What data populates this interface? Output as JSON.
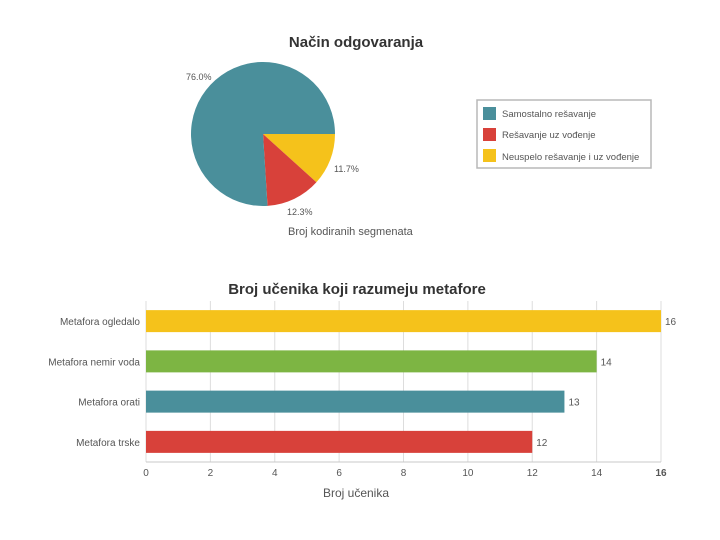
{
  "chart_data": [
    {
      "type": "pie",
      "title": "Način odgovaranja",
      "xlabel": "Broj kodiranih segmenata",
      "slices": [
        {
          "name": "Samostalno rešavanje",
          "value": 76.0,
          "label": "76.0%",
          "color": "#4a8f9b"
        },
        {
          "name": "Rešavanje uz vođenje",
          "value": 12.3,
          "label": "12.3%",
          "color": "#d8413a"
        },
        {
          "name": "Neuspelo rešavanje i uz vođenje",
          "value": 11.7,
          "label": "11.7%",
          "color": "#f5c21b"
        }
      ],
      "legend_position": "right"
    },
    {
      "type": "bar",
      "orientation": "horizontal",
      "title": "Broj učenika koji razumeju metafore",
      "xlabel": "Broj učenika",
      "ylabel": "",
      "xlim": [
        0,
        16
      ],
      "ticks": [
        "0",
        "2",
        "4",
        "6",
        "8",
        "10",
        "12",
        "14",
        "16"
      ],
      "categories": [
        "Metafora ogledalo",
        "Metafora nemir voda",
        "Metafora orati",
        "Metafora trske"
      ],
      "values": [
        16,
        14,
        13,
        12
      ],
      "colors": [
        "#f5c21b",
        "#7db543",
        "#4a8f9b",
        "#d8413a"
      ],
      "grid": true
    }
  ]
}
